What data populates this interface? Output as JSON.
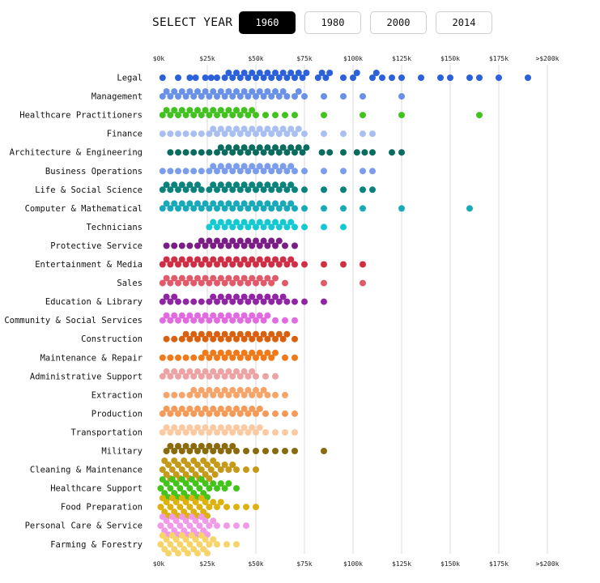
{
  "controls": {
    "select_label": "SELECT YEAR",
    "years": [
      "1960",
      "1980",
      "2000",
      "2014"
    ],
    "selected_year": "1960"
  },
  "chart_data": {
    "type": "scatter",
    "subtype": "beeswarm",
    "title": "",
    "xlabel": "",
    "ylabel": "",
    "xlim": [
      0,
      200000
    ],
    "x_ticks": [
      {
        "value": 0,
        "label": "$0k"
      },
      {
        "value": 25000,
        "label": "$25k"
      },
      {
        "value": 50000,
        "label": "$50k"
      },
      {
        "value": 75000,
        "label": "$75k"
      },
      {
        "value": 100000,
        "label": "$100k"
      },
      {
        "value": 125000,
        "label": "$125k"
      },
      {
        "value": 150000,
        "label": "$150k"
      },
      {
        "value": 175000,
        "label": "$175k"
      },
      {
        "value": 200000,
        "label": ">$200k"
      }
    ],
    "grid": true,
    "series": [
      {
        "name": "Legal",
        "color": "#2b62d9",
        "values": [
          2,
          10,
          16,
          19,
          24,
          27,
          30,
          34,
          36,
          38,
          40,
          42,
          44,
          46,
          48,
          50,
          52,
          54,
          56,
          58,
          60,
          62,
          64,
          66,
          68,
          70,
          72,
          74,
          76,
          82,
          84,
          86,
          88,
          95,
          100,
          102,
          110,
          112,
          115,
          120,
          125,
          135,
          145,
          150,
          160,
          165,
          175,
          190
        ],
        "extra": {}
      },
      {
        "name": "Management",
        "color": "#6a91e8",
        "values": [
          2,
          4,
          6,
          8,
          10,
          12,
          14,
          16,
          18,
          20,
          22,
          24,
          26,
          28,
          30,
          32,
          34,
          36,
          38,
          40,
          42,
          44,
          46,
          48,
          50,
          52,
          54,
          56,
          58,
          60,
          62,
          64,
          66,
          70,
          72,
          75,
          85,
          95,
          105,
          125
        ],
        "extra": {}
      },
      {
        "name": "Healthcare Practitioners",
        "color": "#42c21f",
        "values": [
          2,
          4,
          6,
          8,
          10,
          12,
          14,
          16,
          18,
          20,
          22,
          24,
          26,
          28,
          30,
          32,
          34,
          36,
          38,
          40,
          42,
          44,
          46,
          48,
          50,
          55,
          60,
          65,
          70,
          85,
          105,
          125,
          165
        ],
        "extra": {}
      },
      {
        "name": "Finance",
        "color": "#a9bff2",
        "values": [
          2,
          6,
          10,
          14,
          18,
          22,
          26,
          28,
          30,
          32,
          34,
          36,
          38,
          40,
          42,
          44,
          46,
          48,
          50,
          52,
          54,
          56,
          58,
          60,
          62,
          64,
          66,
          68,
          70,
          72,
          75,
          85,
          95,
          105,
          110
        ],
        "extra": {}
      },
      {
        "name": "Architecture & Engineering",
        "color": "#0a6b5f",
        "values": [
          6,
          10,
          14,
          18,
          22,
          26,
          30,
          32,
          34,
          36,
          38,
          40,
          42,
          44,
          46,
          48,
          50,
          52,
          54,
          56,
          58,
          60,
          62,
          64,
          66,
          68,
          70,
          72,
          74,
          76,
          84,
          88,
          95,
          102,
          106,
          110,
          120,
          125
        ],
        "extra": {}
      },
      {
        "name": "Business Operations",
        "color": "#7b9deb",
        "values": [
          2,
          6,
          10,
          14,
          18,
          22,
          26,
          28,
          30,
          32,
          34,
          36,
          38,
          40,
          42,
          44,
          46,
          48,
          50,
          52,
          54,
          56,
          58,
          60,
          62,
          64,
          66,
          68,
          70,
          75,
          85,
          95,
          105,
          110
        ],
        "extra": {}
      },
      {
        "name": "Life & Social Science",
        "color": "#0b827c",
        "values": [
          2,
          4,
          6,
          8,
          10,
          12,
          14,
          16,
          18,
          20,
          22,
          26,
          28,
          30,
          32,
          34,
          36,
          38,
          40,
          42,
          44,
          46,
          48,
          50,
          52,
          54,
          56,
          58,
          60,
          62,
          64,
          66,
          68,
          70,
          75,
          85,
          95,
          105,
          110
        ],
        "extra": {}
      },
      {
        "name": "Computer & Mathematical",
        "color": "#19a9b8",
        "values": [
          2,
          4,
          6,
          8,
          10,
          12,
          14,
          16,
          18,
          20,
          22,
          24,
          26,
          28,
          30,
          32,
          34,
          36,
          38,
          40,
          42,
          44,
          46,
          48,
          50,
          52,
          54,
          56,
          58,
          60,
          62,
          64,
          66,
          68,
          70,
          75,
          85,
          95,
          105,
          125,
          160
        ],
        "extra": {}
      },
      {
        "name": "Technicians",
        "color": "#14c9d1",
        "values": [
          26,
          28,
          30,
          32,
          34,
          36,
          38,
          40,
          42,
          44,
          46,
          48,
          50,
          52,
          54,
          56,
          58,
          60,
          62,
          64,
          66,
          68,
          70,
          75,
          85,
          95
        ],
        "extra": {}
      },
      {
        "name": "Protective Service",
        "color": "#7a1e86",
        "values": [
          4,
          8,
          12,
          16,
          20,
          22,
          24,
          26,
          28,
          30,
          32,
          34,
          36,
          38,
          40,
          42,
          44,
          46,
          48,
          50,
          52,
          54,
          56,
          58,
          60,
          62,
          65,
          70
        ],
        "extra": {}
      },
      {
        "name": "Entertainment & Media",
        "color": "#cf2f45",
        "values": [
          2,
          4,
          6,
          8,
          10,
          12,
          14,
          16,
          18,
          20,
          22,
          24,
          26,
          28,
          30,
          32,
          34,
          36,
          38,
          40,
          42,
          44,
          46,
          48,
          50,
          52,
          54,
          56,
          58,
          60,
          62,
          64,
          66,
          68,
          70,
          75,
          85,
          95,
          105
        ],
        "extra": {}
      },
      {
        "name": "Sales",
        "color": "#e05a6a",
        "values": [
          2,
          4,
          6,
          8,
          10,
          12,
          14,
          16,
          18,
          20,
          22,
          24,
          26,
          28,
          30,
          32,
          34,
          36,
          38,
          40,
          42,
          44,
          46,
          48,
          50,
          52,
          54,
          56,
          58,
          60,
          65,
          85,
          105
        ],
        "extra": {}
      },
      {
        "name": "Education & Library",
        "color": "#9026a3",
        "values": [
          2,
          4,
          6,
          8,
          10,
          14,
          18,
          22,
          26,
          28,
          30,
          32,
          34,
          36,
          38,
          40,
          42,
          44,
          46,
          48,
          50,
          52,
          54,
          56,
          58,
          60,
          62,
          64,
          66,
          70,
          75,
          85
        ],
        "extra": {}
      },
      {
        "name": "Community & Social Services",
        "color": "#e16be0",
        "values": [
          2,
          4,
          6,
          8,
          10,
          12,
          14,
          16,
          18,
          20,
          22,
          24,
          26,
          28,
          30,
          32,
          34,
          36,
          38,
          40,
          42,
          44,
          46,
          48,
          50,
          52,
          54,
          56,
          60,
          65,
          70
        ],
        "extra": {}
      },
      {
        "name": "Construction",
        "color": "#d9600f",
        "values": [
          4,
          8,
          12,
          14,
          16,
          18,
          20,
          22,
          24,
          26,
          28,
          30,
          32,
          34,
          36,
          38,
          40,
          42,
          44,
          46,
          48,
          50,
          52,
          54,
          56,
          58,
          60,
          62,
          64,
          66,
          70
        ],
        "extra": {}
      },
      {
        "name": "Maintenance & Repair",
        "color": "#f07a19",
        "values": [
          2,
          6,
          10,
          14,
          18,
          22,
          24,
          26,
          28,
          30,
          32,
          34,
          36,
          38,
          40,
          42,
          44,
          46,
          48,
          50,
          52,
          54,
          56,
          58,
          60,
          65,
          70
        ],
        "extra": {}
      },
      {
        "name": "Administrative Support",
        "color": "#eda3a3",
        "values": [
          2,
          4,
          6,
          8,
          10,
          12,
          14,
          16,
          18,
          20,
          22,
          24,
          26,
          28,
          30,
          32,
          34,
          36,
          38,
          40,
          42,
          44,
          46,
          48,
          50,
          55,
          60
        ],
        "extra": {}
      },
      {
        "name": "Extraction",
        "color": "#f5a56a",
        "values": [
          4,
          8,
          12,
          16,
          18,
          20,
          22,
          24,
          26,
          28,
          30,
          32,
          34,
          36,
          38,
          40,
          42,
          44,
          46,
          48,
          50,
          52,
          54,
          56,
          60,
          65
        ],
        "extra": {}
      },
      {
        "name": "Production",
        "color": "#f59a58",
        "values": [
          2,
          4,
          6,
          8,
          10,
          12,
          14,
          16,
          18,
          20,
          22,
          24,
          26,
          28,
          30,
          32,
          34,
          36,
          38,
          40,
          42,
          44,
          46,
          48,
          50,
          52,
          55,
          60,
          65,
          70
        ],
        "extra": {}
      },
      {
        "name": "Transportation",
        "color": "#fbcaa3",
        "values": [
          2,
          4,
          6,
          8,
          10,
          12,
          14,
          16,
          18,
          20,
          22,
          24,
          26,
          28,
          30,
          32,
          34,
          36,
          38,
          40,
          42,
          44,
          46,
          48,
          50,
          52,
          55,
          60,
          65,
          70
        ],
        "extra": {}
      },
      {
        "name": "Military",
        "color": "#8a6a0c",
        "values": [
          4,
          6,
          8,
          10,
          12,
          14,
          16,
          18,
          20,
          22,
          24,
          26,
          28,
          30,
          32,
          34,
          36,
          38,
          40,
          45,
          50,
          55,
          60,
          65,
          70,
          85
        ],
        "extra": {}
      },
      {
        "name": "Cleaning & Maintenance",
        "color": "#c49a18",
        "values": [
          2,
          3,
          4,
          5,
          6,
          7,
          8,
          9,
          10,
          11,
          12,
          13,
          14,
          15,
          16,
          17,
          18,
          19,
          20,
          21,
          22,
          23,
          24,
          25,
          26,
          27,
          28,
          29,
          30,
          32,
          34,
          36,
          38,
          40,
          45,
          50
        ],
        "extra": {}
      },
      {
        "name": "Healthcare Support",
        "color": "#43c41a",
        "values": [
          1,
          2,
          3,
          4,
          5,
          6,
          7,
          8,
          9,
          10,
          11,
          12,
          13,
          14,
          15,
          16,
          17,
          18,
          19,
          20,
          21,
          22,
          23,
          24,
          25,
          26,
          28,
          30,
          32,
          34,
          36,
          40
        ],
        "extra": {}
      },
      {
        "name": "Food Preparation",
        "color": "#ddb20f",
        "values": [
          1,
          2,
          3,
          4,
          5,
          6,
          7,
          8,
          9,
          10,
          11,
          12,
          13,
          14,
          15,
          16,
          17,
          18,
          19,
          20,
          21,
          22,
          23,
          24,
          25,
          26,
          28,
          30,
          32,
          35,
          40,
          45,
          50
        ],
        "extra": {}
      },
      {
        "name": "Personal Care & Service",
        "color": "#f09ae8",
        "values": [
          1,
          2,
          3,
          4,
          5,
          6,
          7,
          8,
          9,
          10,
          11,
          12,
          13,
          14,
          15,
          16,
          17,
          18,
          19,
          20,
          21,
          22,
          23,
          24,
          25,
          26,
          28,
          30,
          35,
          40,
          45
        ],
        "extra": {}
      },
      {
        "name": "Farming & Forestry",
        "color": "#f7d46a",
        "values": [
          1,
          2,
          3,
          4,
          5,
          6,
          7,
          8,
          9,
          10,
          11,
          12,
          13,
          14,
          15,
          16,
          17,
          18,
          19,
          20,
          21,
          22,
          23,
          24,
          25,
          26,
          28,
          30,
          35,
          40
        ],
        "extra": {}
      }
    ]
  }
}
